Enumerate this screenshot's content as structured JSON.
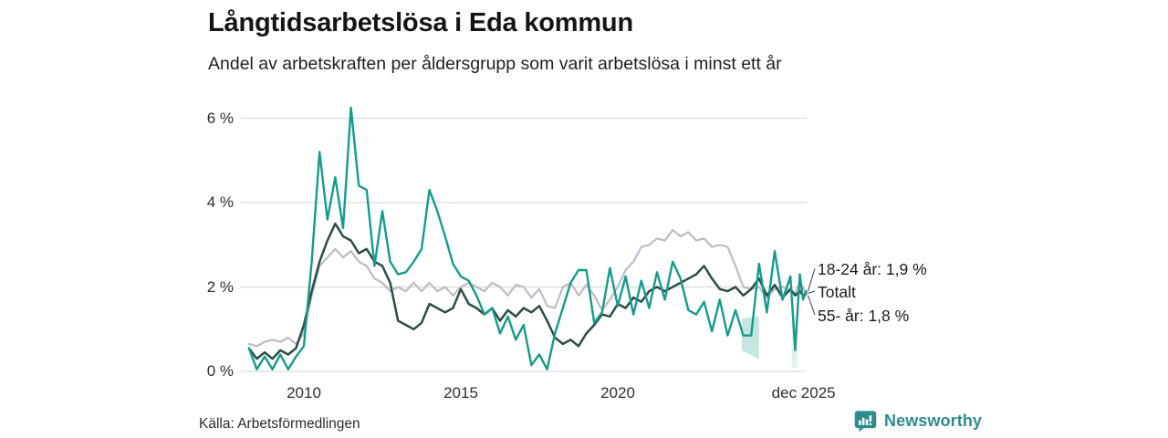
{
  "header": {
    "title": "Långtidsarbetslösa i Eda kommun",
    "subtitle": "Andel av arbetskraften per åldersgrupp som varit arbetslösa i minst ett år"
  },
  "chart_data": {
    "type": "line",
    "title": "Långtidsarbetslösa i Eda kommun",
    "x_unit": "decimal_year",
    "grid": "horizontal",
    "ylim": [
      0,
      6.5
    ],
    "yticks": [
      0,
      2,
      4,
      6
    ],
    "ytick_labels": [
      "0 %",
      "2 %",
      "4 %",
      "6 %"
    ],
    "xticks": [
      2010,
      2015,
      2020,
      2025.92
    ],
    "xtick_labels": [
      "2010",
      "2015",
      "2020",
      "dec 2025"
    ],
    "x": [
      2008.25,
      2008.5,
      2008.75,
      2009,
      2009.25,
      2009.5,
      2009.75,
      2010,
      2010.25,
      2010.5,
      2010.75,
      2011,
      2011.25,
      2011.5,
      2011.75,
      2012,
      2012.25,
      2012.5,
      2012.75,
      2013,
      2013.25,
      2013.5,
      2013.75,
      2014,
      2014.25,
      2014.5,
      2014.75,
      2015,
      2015.25,
      2015.5,
      2015.75,
      2016,
      2016.25,
      2016.5,
      2016.75,
      2017,
      2017.25,
      2017.5,
      2017.75,
      2018,
      2018.25,
      2018.5,
      2018.75,
      2019,
      2019.25,
      2019.5,
      2019.75,
      2020,
      2020.25,
      2020.5,
      2020.75,
      2021,
      2021.25,
      2021.5,
      2021.75,
      2022,
      2022.25,
      2022.5,
      2022.75,
      2023,
      2023.25,
      2023.5,
      2023.75,
      2024,
      2024.25,
      2024.5,
      2024.75,
      2025,
      2025.25,
      2025.5,
      2025.65,
      2025.8,
      2025.9,
      2026
    ],
    "series": [
      {
        "name": "18-24 år",
        "color": "#169b8b",
        "end_value": 1.9,
        "values": [
          0.55,
          0.05,
          0.35,
          0.05,
          0.4,
          0.05,
          0.35,
          0.6,
          2.6,
          5.2,
          3.6,
          4.6,
          3.4,
          6.25,
          4.4,
          4.3,
          2.5,
          3.8,
          2.6,
          2.3,
          2.35,
          2.6,
          2.9,
          4.3,
          3.8,
          3.2,
          2.55,
          2.25,
          2.15,
          1.8,
          1.35,
          1.5,
          0.9,
          1.3,
          0.75,
          1.1,
          0.15,
          0.4,
          0.05,
          0.9,
          1.5,
          2.1,
          2.4,
          2.4,
          1.15,
          1.4,
          2.45,
          1.55,
          2.25,
          1.35,
          2.15,
          1.5,
          2.35,
          1.7,
          2.6,
          2.2,
          1.45,
          1.35,
          1.65,
          0.95,
          1.7,
          0.85,
          1.45,
          0.85,
          0.85,
          2.55,
          1.4,
          2.85,
          1.7,
          2.25,
          0.5,
          2.3,
          1.7,
          1.9
        ]
      },
      {
        "name": "Totalt",
        "color": "#2d4d46",
        "end_value": 1.85,
        "values": [
          0.55,
          0.3,
          0.45,
          0.3,
          0.5,
          0.4,
          0.55,
          1.1,
          1.9,
          2.6,
          3.1,
          3.5,
          3.2,
          3.1,
          2.8,
          2.9,
          2.6,
          2.5,
          2.1,
          1.2,
          1.1,
          1.0,
          1.15,
          1.6,
          1.5,
          1.4,
          1.5,
          1.95,
          1.6,
          1.5,
          1.35,
          1.5,
          1.2,
          1.45,
          1.3,
          1.5,
          1.4,
          1.55,
          1.2,
          0.8,
          0.65,
          0.75,
          0.6,
          0.9,
          1.1,
          1.35,
          1.3,
          1.6,
          1.5,
          1.75,
          1.65,
          1.9,
          2.0,
          1.9,
          2.0,
          2.1,
          2.2,
          2.3,
          2.5,
          2.2,
          1.95,
          1.9,
          2.0,
          1.8,
          1.95,
          2.2,
          1.8,
          2.05,
          1.75,
          1.95,
          1.8,
          1.9,
          1.8,
          1.85
        ]
      },
      {
        "name": "55- år",
        "color": "#bfbac6",
        "end_value": 1.8,
        "values": [
          0.65,
          0.6,
          0.7,
          0.75,
          0.7,
          0.8,
          0.65,
          0.9,
          1.8,
          2.5,
          2.7,
          2.9,
          2.7,
          2.85,
          2.6,
          2.5,
          2.2,
          2.1,
          1.9,
          2.0,
          1.9,
          2.1,
          1.9,
          2.1,
          1.9,
          2.0,
          1.8,
          2.0,
          2.1,
          2.0,
          1.9,
          2.1,
          2.0,
          1.8,
          2.05,
          2.0,
          1.75,
          1.95,
          1.55,
          1.5,
          2.0,
          2.1,
          1.8,
          2.05,
          1.8,
          1.45,
          1.7,
          2.0,
          2.4,
          2.6,
          2.95,
          3.0,
          3.15,
          3.1,
          3.35,
          3.2,
          3.3,
          3.1,
          3.15,
          2.95,
          3.0,
          2.95,
          2.5,
          2.0,
          1.95,
          2.0,
          1.75,
          1.95,
          2.0,
          1.9,
          1.85,
          2.1,
          2.0,
          1.8
        ]
      }
    ],
    "uncertainty_bands": [
      {
        "x": [
          2023.95,
          2024.5
        ],
        "upper": [
          1.25,
          1.3
        ],
        "lower": [
          0.5,
          0.28
        ],
        "color": "#9fd6cb",
        "opacity": 0.6
      },
      {
        "x": [
          2025.55,
          2025.72
        ],
        "upper": [
          1.3,
          1.3
        ],
        "lower": [
          0.08,
          0.08
        ],
        "color": "#9fd6cb",
        "opacity": 0.35
      }
    ],
    "annotations": [
      {
        "label": "18-24 år: 1,9 %",
        "value": 1.9
      },
      {
        "label": "Totalt",
        "value": 1.85
      },
      {
        "label": "55- år: 1,8 %",
        "value": 1.8
      }
    ]
  },
  "footer": {
    "source": "Källa: Arbetsförmedlingen",
    "brand": "Newsworthy"
  },
  "colors": {
    "accent_teal": "#169b8b",
    "dark_green": "#2d4d46",
    "light_grey": "#bfbac6",
    "gridline": "#dcdcdc",
    "brand_teal": "#2e8b8e"
  }
}
